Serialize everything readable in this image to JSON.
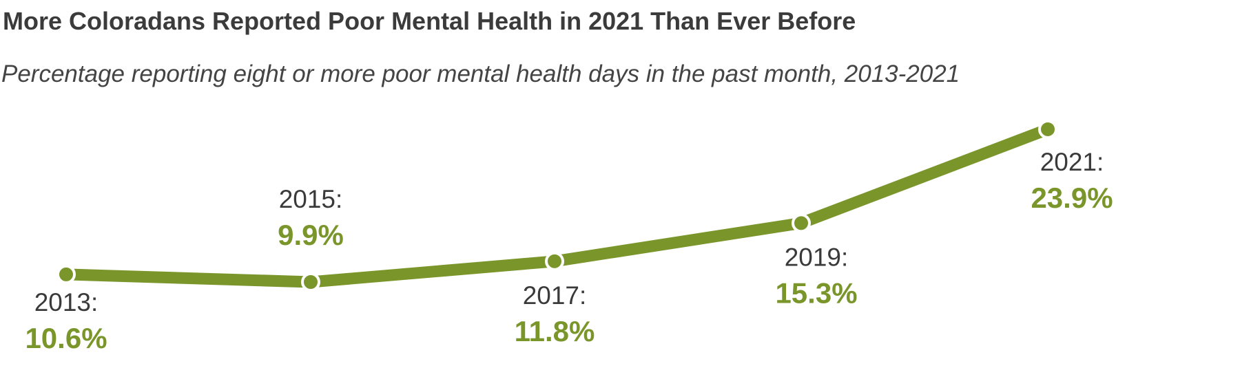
{
  "chart_data": {
    "type": "line",
    "title": "More Coloradans Reported Poor Mental Health in 2021 Than Ever Before",
    "subtitle": "Percentage reporting eight or more poor mental health days in the past month, 2013-2021",
    "x": [
      "2013",
      "2015",
      "2017",
      "2019",
      "2021"
    ],
    "values": [
      10.6,
      9.9,
      11.8,
      15.3,
      23.9
    ],
    "year_labels": [
      "2013:",
      "2015:",
      "2017:",
      "2019:",
      "2021:"
    ],
    "value_labels": [
      "10.6%",
      "9.9%",
      "11.8%",
      "15.3%",
      "23.9%"
    ],
    "label_position": [
      "below",
      "above",
      "below",
      "below",
      "below"
    ],
    "xlabel": "",
    "ylabel": "",
    "grid": false,
    "legend": "none",
    "color": "#7a962b"
  }
}
